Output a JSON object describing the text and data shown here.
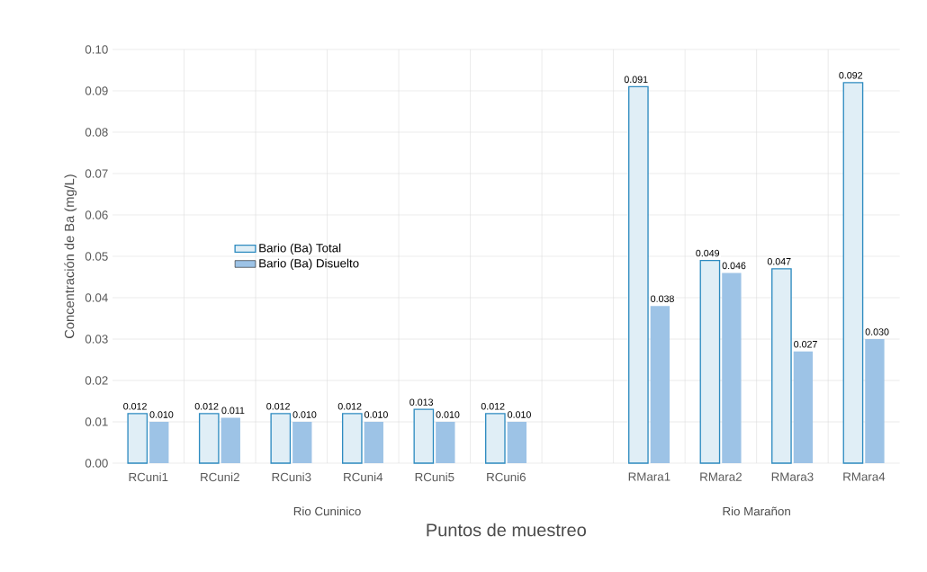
{
  "chart_data": {
    "type": "bar",
    "xlabel": "Puntos de muestreo",
    "ylabel": "Concentración de Ba (mg/L)",
    "categories": [
      "RCuni1",
      "RCuni2",
      "RCuni3",
      "RCuni4",
      "RCuni5",
      "RCuni6",
      null,
      "RMara1",
      "RMara2",
      "RMara3",
      "RMara4"
    ],
    "series": [
      {
        "name": "Bario (Ba) Total",
        "color": "#2e8bc0",
        "values": [
          0.012,
          0.012,
          0.012,
          0.012,
          0.013,
          0.012,
          null,
          0.091,
          0.049,
          0.047,
          0.092
        ],
        "value_labels": [
          "0.012",
          "0.012",
          "0.012",
          "0.012",
          "0.013",
          "0.012",
          null,
          "0.091",
          "0.049",
          "0.047",
          "0.092"
        ]
      },
      {
        "name": "Bario (Ba) Disuelto",
        "color": "#9dc3e6",
        "values": [
          0.01,
          0.011,
          0.01,
          0.01,
          0.01,
          0.01,
          null,
          0.038,
          0.046,
          0.027,
          0.03
        ],
        "value_labels": [
          "0.010",
          "0.011",
          "0.010",
          "0.010",
          "0.010",
          "0.010",
          null,
          "0.038",
          "0.046",
          "0.027",
          "0.030"
        ]
      }
    ],
    "ylim": [
      0,
      0.1
    ],
    "yticks": [
      "0.00",
      "0.01",
      "0.02",
      "0.03",
      "0.04",
      "0.05",
      "0.06",
      "0.07",
      "0.08",
      "0.09",
      "0.10"
    ],
    "grid": true,
    "legend": "left",
    "annotations": [
      "Rio Cuninico",
      "Rio Marañon"
    ]
  }
}
